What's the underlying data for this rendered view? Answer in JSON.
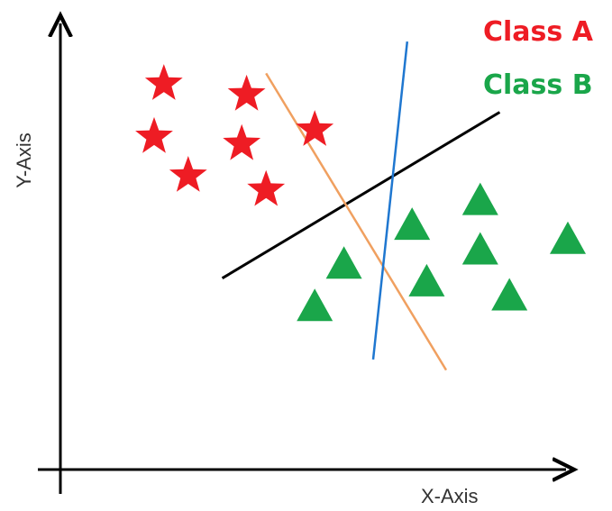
{
  "chart_data": {
    "type": "scatter",
    "title": "",
    "xlabel": "X-Axis",
    "ylabel": "Y-Axis",
    "xlim": [
      0,
      100
    ],
    "ylim": [
      0,
      100
    ],
    "grid": false,
    "legend_position": "top-right",
    "series": [
      {
        "name": "Class A",
        "color": "#ee1c24",
        "marker": "star",
        "points": [
          {
            "x": 17,
            "y": 89
          },
          {
            "x": 34,
            "y": 86
          },
          {
            "x": 15,
            "y": 74
          },
          {
            "x": 33,
            "y": 72
          },
          {
            "x": 48,
            "y": 76
          },
          {
            "x": 22,
            "y": 63
          },
          {
            "x": 38,
            "y": 59
          }
        ]
      },
      {
        "name": "Class B",
        "color": "#1aa64a",
        "marker": "triangle",
        "points": [
          {
            "x": 82,
            "y": 56
          },
          {
            "x": 68,
            "y": 49
          },
          {
            "x": 100,
            "y": 45
          },
          {
            "x": 82,
            "y": 42
          },
          {
            "x": 54,
            "y": 38
          },
          {
            "x": 71,
            "y": 33
          },
          {
            "x": 88,
            "y": 29
          },
          {
            "x": 48,
            "y": 26
          }
        ]
      }
    ],
    "lines": [
      {
        "color": "#000000",
        "from": {
          "x": 29,
          "y": 34
        },
        "to": {
          "x": 86,
          "y": 81
        }
      },
      {
        "color": "#f0a060",
        "from": {
          "x": 38,
          "y": 92
        },
        "to": {
          "x": 75,
          "y": 8
        }
      },
      {
        "color": "#1f77d0",
        "from": {
          "x": 67,
          "y": 101
        },
        "to": {
          "x": 60,
          "y": 11
        }
      }
    ]
  }
}
